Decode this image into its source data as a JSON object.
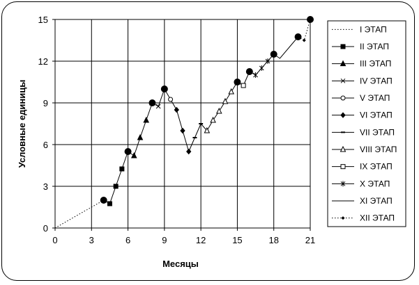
{
  "chart_data": {
    "type": "line",
    "title": "",
    "xlabel": "Месяцы",
    "ylabel": "Условные единицы",
    "xlim": [
      0,
      21
    ],
    "ylim": [
      0,
      15
    ],
    "xticks": [
      "0",
      "3",
      "6",
      "9",
      "12",
      "15",
      "18",
      "21"
    ],
    "yticks": [
      "0",
      "3",
      "6",
      "9",
      "12",
      "15"
    ],
    "grid": true,
    "legend_position": "right",
    "series": [
      {
        "name": "I ЭТАП",
        "style": "dotted",
        "marker": "none",
        "x": [
          0,
          4
        ],
        "y": [
          0,
          2
        ]
      },
      {
        "name": "II ЭТАП",
        "style": "solid",
        "marker": "square",
        "x": [
          4,
          4.5,
          5,
          5.5,
          6
        ],
        "y": [
          2,
          1.75,
          3,
          4.25,
          5.5
        ]
      },
      {
        "name": "III ЭТАП",
        "style": "solid",
        "marker": "triangle",
        "x": [
          6,
          6.5,
          7,
          7.5,
          8
        ],
        "y": [
          5.5,
          5.2,
          6.5,
          7.75,
          9
        ]
      },
      {
        "name": "IV ЭТАП",
        "style": "solid",
        "marker": "x",
        "x": [
          8,
          8.5,
          9
        ],
        "y": [
          9,
          8.75,
          10
        ]
      },
      {
        "name": "V ЭТАП",
        "style": "solid",
        "marker": "circle-open",
        "x": [
          9,
          9.5
        ],
        "y": [
          10,
          9.25
        ]
      },
      {
        "name": "VI ЭТАП",
        "style": "solid",
        "marker": "diamond",
        "x": [
          9.5,
          10,
          10.5,
          11
        ],
        "y": [
          9.25,
          8.5,
          7,
          5.5
        ]
      },
      {
        "name": "VII ЭТАП",
        "style": "solid",
        "marker": "dash",
        "x": [
          11,
          11.5,
          12
        ],
        "y": [
          5.5,
          6.5,
          7.5
        ]
      },
      {
        "name": "VIII ЭТАП",
        "style": "solid",
        "marker": "triangle-open",
        "x": [
          12,
          12.5,
          13,
          13.5,
          14,
          14.5,
          15
        ],
        "y": [
          7.5,
          7,
          7.75,
          8.4,
          9.1,
          9.8,
          10.5
        ]
      },
      {
        "name": "IX ЭТАП",
        "style": "solid",
        "marker": "square-open",
        "x": [
          15,
          15.5,
          16
        ],
        "y": [
          10.5,
          10.25,
          11.25
        ]
      },
      {
        "name": "X ЭТАП",
        "style": "solid",
        "marker": "star",
        "x": [
          16,
          16.5,
          17,
          17.5,
          18
        ],
        "y": [
          11.25,
          11,
          11.5,
          12,
          12.5
        ]
      },
      {
        "name": "XI ЭТАП",
        "style": "solid",
        "marker": "none",
        "x": [
          18,
          18.5,
          20
        ],
        "y": [
          12.5,
          12.2,
          13.75
        ]
      },
      {
        "name": "XII ЭТАП",
        "style": "dotted",
        "marker": "diamond-small",
        "x": [
          20,
          20.5,
          21
        ],
        "y": [
          13.75,
          13.5,
          15
        ]
      }
    ],
    "highlight_points": {
      "x": [
        4,
        6,
        8,
        9,
        15,
        16,
        18,
        20,
        21
      ],
      "y": [
        2,
        5.5,
        9,
        10,
        10.5,
        11.25,
        12.5,
        13.75,
        15
      ]
    }
  }
}
